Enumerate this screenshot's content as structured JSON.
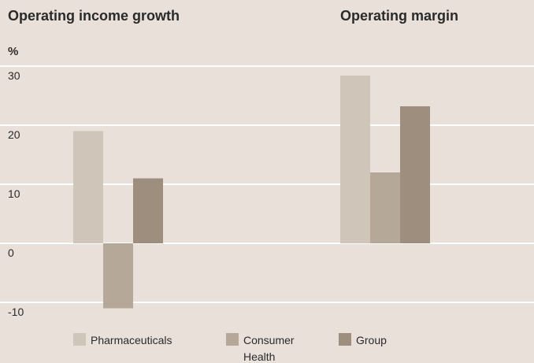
{
  "chart_data": {
    "type": "bar",
    "y_label": "%",
    "categories": [
      "Operating income growth",
      "Operating margin"
    ],
    "series": [
      {
        "name": "Pharmaceuticals",
        "color": "#cfc5b9",
        "values": [
          19,
          28.4
        ]
      },
      {
        "name": "Consumer Health",
        "color": "#b5a898",
        "values": [
          -11,
          12
        ]
      },
      {
        "name": "Group",
        "color": "#9e8e7d",
        "values": [
          11,
          23.2
        ]
      }
    ],
    "ylim": [
      -10,
      30
    ],
    "yticks": [
      30,
      20,
      10,
      0,
      -10
    ],
    "grid": true
  }
}
